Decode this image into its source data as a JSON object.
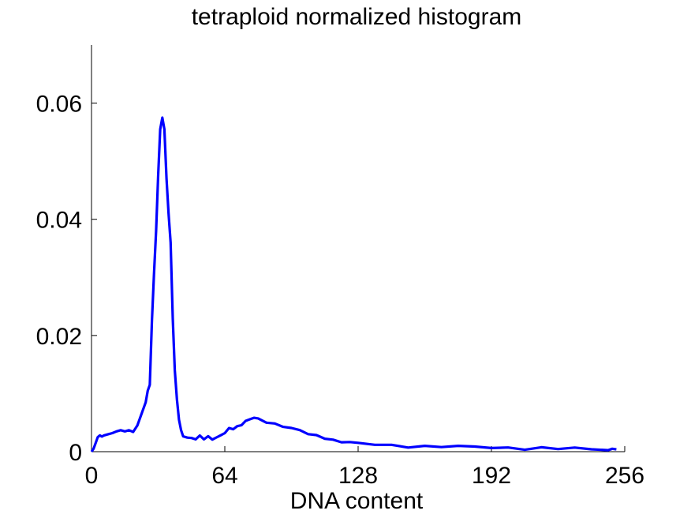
{
  "chart_data": {
    "type": "line",
    "title": "tetraploid normalized histogram",
    "xlabel": "DNA content",
    "ylabel": "",
    "xlim": [
      0,
      256
    ],
    "ylim": [
      0,
      0.07
    ],
    "xticks": [
      0,
      64,
      128,
      192,
      256
    ],
    "xtick_labels": [
      "0",
      "64",
      "128",
      "192",
      "256"
    ],
    "yticks": [
      0,
      0.02,
      0.04,
      0.06
    ],
    "ytick_labels": [
      "0",
      "0.02",
      "0.04",
      "0.06"
    ],
    "grid": false,
    "legend": "none",
    "series": [
      {
        "color": "#0000ff",
        "x": [
          0,
          1,
          2,
          3,
          4,
          5,
          6,
          8,
          10,
          12,
          14,
          16,
          18,
          20,
          22,
          24,
          26,
          27,
          28,
          29,
          30,
          31,
          32,
          33,
          34,
          35,
          36,
          37,
          38,
          39,
          40,
          41,
          42,
          43,
          44,
          46,
          48,
          50,
          52,
          54,
          56,
          58,
          60,
          62,
          64,
          66,
          68,
          70,
          72,
          74,
          76,
          78,
          80,
          84,
          88,
          92,
          96,
          100,
          104,
          108,
          112,
          116,
          120,
          124,
          128,
          136,
          144,
          152,
          160,
          168,
          176,
          184,
          192,
          200,
          208,
          216,
          224,
          232,
          240,
          248,
          250,
          252
        ],
        "y": [
          0,
          0.0005,
          0.0015,
          0.0025,
          0.0028,
          0.0026,
          0.0028,
          0.003,
          0.0032,
          0.0035,
          0.0037,
          0.0035,
          0.0037,
          0.0034,
          0.0045,
          0.0065,
          0.0085,
          0.0105,
          0.0115,
          0.0225,
          0.0305,
          0.038,
          0.0475,
          0.0555,
          0.0575,
          0.0555,
          0.047,
          0.041,
          0.036,
          0.023,
          0.014,
          0.009,
          0.0055,
          0.0035,
          0.0028,
          0.0025,
          0.0024,
          0.0022,
          0.0025,
          0.0022,
          0.0025,
          0.0023,
          0.0025,
          0.0028,
          0.0032,
          0.0038,
          0.004,
          0.0043,
          0.0048,
          0.0053,
          0.0055,
          0.0058,
          0.0055,
          0.0052,
          0.0048,
          0.0045,
          0.004,
          0.0036,
          0.003,
          0.0027,
          0.0025,
          0.002,
          0.0018,
          0.0015,
          0.0014,
          0.0012,
          0.0011,
          0.001,
          0.0009,
          0.0009,
          0.0008,
          0.0008,
          0.0007,
          0.0007,
          0.0006,
          0.0006,
          0.0005,
          0.0005,
          0.0004,
          0.0004,
          0.0005,
          0.0004
        ]
      }
    ]
  }
}
